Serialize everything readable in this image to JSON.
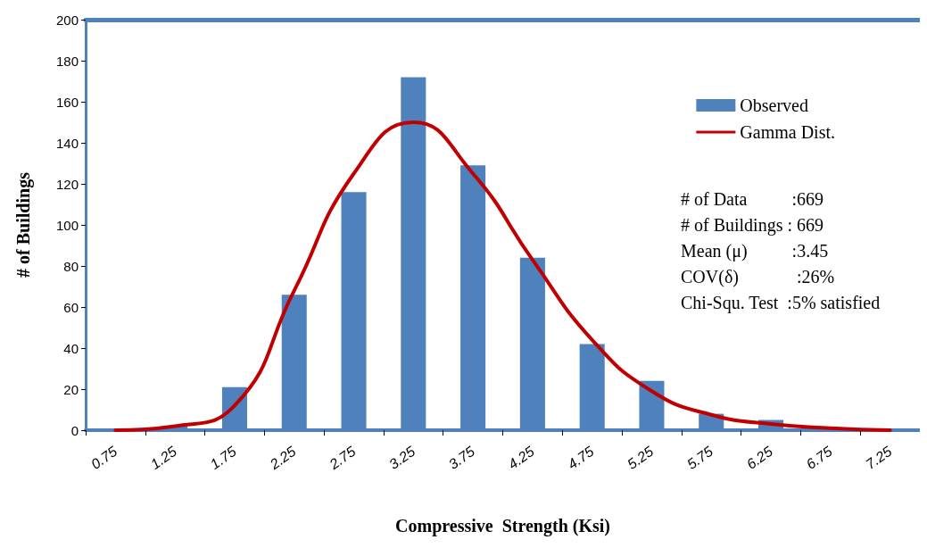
{
  "chart_data": {
    "type": "bar",
    "xlabel": "Compressive  Strength (Ksi)",
    "ylabel": "# of Buildings",
    "categories": [
      "0.75",
      "1.25",
      "1.75",
      "2.25",
      "2.75",
      "3.25",
      "3.75",
      "4.25",
      "4.75",
      "5.25",
      "5.75",
      "6.25",
      "6.75",
      "7.25"
    ],
    "series": [
      {
        "name": "Observed",
        "color": "#4f81bd",
        "values": [
          0,
          2,
          21,
          66,
          116,
          172,
          129,
          84,
          42,
          24,
          8,
          5,
          0,
          0
        ]
      },
      {
        "name": "Gamma Dist.",
        "type": "line",
        "color": "#c00000",
        "values": [
          0,
          2,
          12,
          68,
          125,
          150,
          125,
          83,
          44,
          19,
          7.5,
          3,
          1,
          0
        ]
      }
    ],
    "ylim": [
      0,
      200
    ],
    "yticks": [
      0,
      20,
      40,
      60,
      80,
      100,
      120,
      140,
      160,
      180,
      200
    ],
    "grid": false,
    "legend": "top right",
    "marker": "none",
    "line_style": "solid",
    "annotations": [
      "# of Data          :669",
      "# of Buildings : 669",
      "Mean (μ)          :3.45",
      "COV(δ)             :26%",
      "Chi-Squ. Test  :5% satisfied"
    ]
  }
}
